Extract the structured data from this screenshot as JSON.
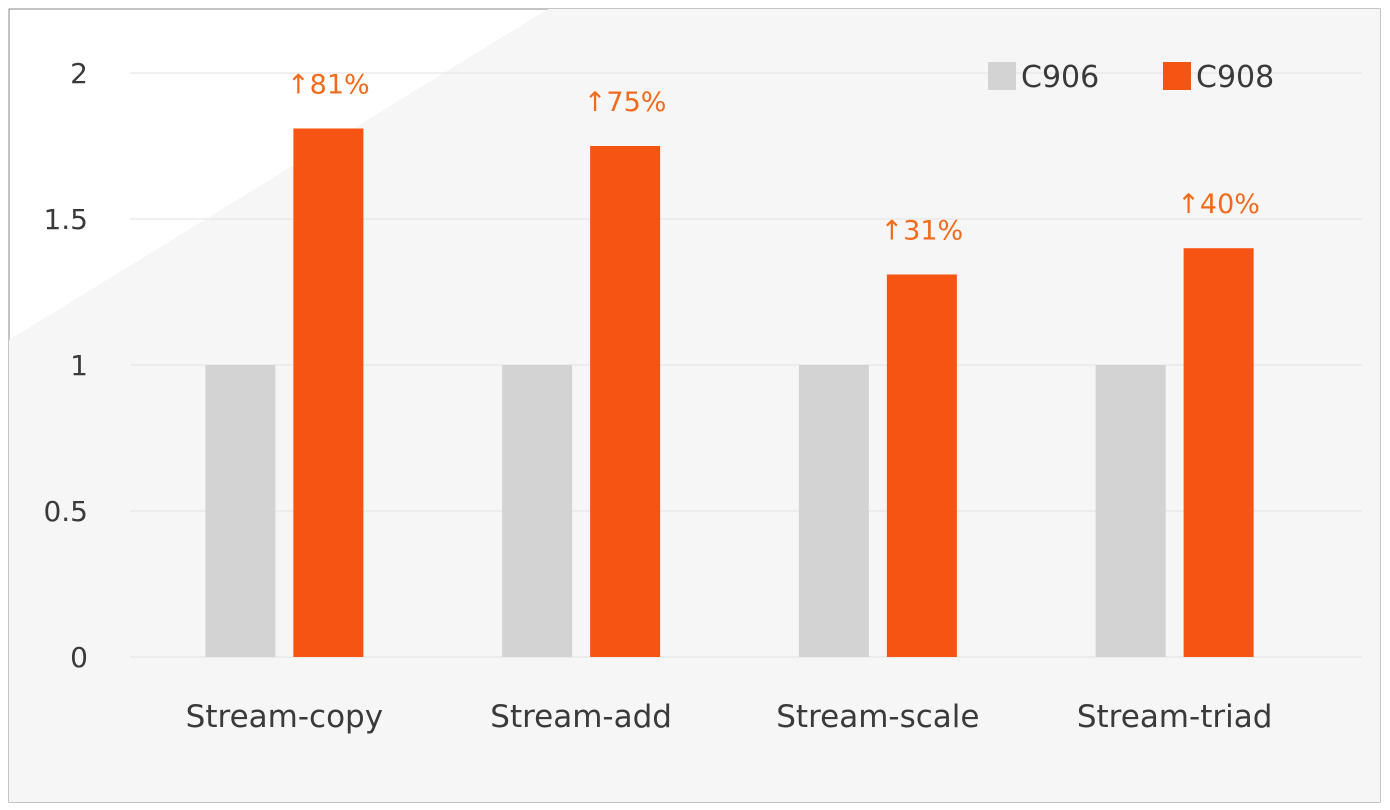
{
  "chart_data": {
    "type": "bar",
    "title": "",
    "xlabel": "",
    "ylabel": "",
    "categories": [
      "Stream-copy",
      "Stream-add",
      "Stream-scale",
      "Stream-triad"
    ],
    "series": [
      {
        "name": "C906",
        "values": [
          1,
          1,
          1,
          1
        ],
        "color": "#d3d3d3"
      },
      {
        "name": "C908",
        "values": [
          1.81,
          1.75,
          1.31,
          1.4
        ],
        "color": "#f55413"
      }
    ],
    "annotations": [
      "↑81%",
      "↑75%",
      "↑31%",
      "↑40%"
    ],
    "annotation_color": "#f26b1d",
    "ylim": [
      0,
      2
    ],
    "yticks": [
      "0",
      "0.5",
      "1",
      "1.5",
      "2"
    ],
    "grid": true,
    "legend_position": "top-right",
    "background_color": "#f6f6f6",
    "frame_color": "#8a8a8a",
    "text_color": "#3a3a3a"
  }
}
